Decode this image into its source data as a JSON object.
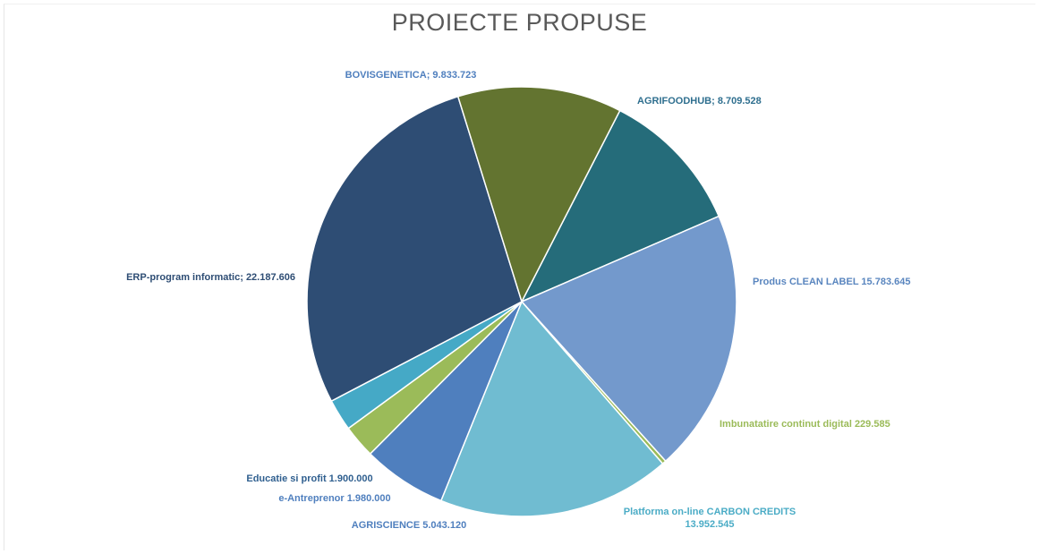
{
  "chart_data": {
    "type": "pie",
    "title": "PROIECTE PROPUSE",
    "slices": [
      {
        "label": "AGRIFOODHUB; 8.709.528",
        "value": 8709528,
        "color": "#256C7A",
        "label_color": "#2F6F8F"
      },
      {
        "label": "Produs CLEAN LABEL 15.783.645",
        "value": 15783645,
        "color": "#7399CC",
        "label_color": "#5A86BF"
      },
      {
        "label": "Imbunatatire continut digital 229.585",
        "value": 229585,
        "color": "#9BBB59",
        "label_color": "#9BBB59"
      },
      {
        "label": "Platforma on-line CARBON CREDITS 13.952.545",
        "value": 13952545,
        "color": "#70BCD1",
        "label_color": "#4BACC6"
      },
      {
        "label": "AGRISCIENCE 5.043.120",
        "value": 5043120,
        "color": "#4F7FBE",
        "label_color": "#4F7FBE"
      },
      {
        "label": "e-Antreprenor 1.980.000",
        "value": 1980000,
        "color": "#9BBB59",
        "label_color": "#4F7FBE"
      },
      {
        "label": "Educatie si profit 1.900.000",
        "value": 1900000,
        "color": "#45A9C6",
        "label_color": "#2F5F8F"
      },
      {
        "label": "ERP-program informatic; 22.187.606",
        "value": 22187606,
        "color": "#2E4D74",
        "label_color": "#2E4D74"
      },
      {
        "label": "BOVISGENETICA; 9.833.723",
        "value": 9833723,
        "color": "#637430",
        "label_color": "#4F7FBE"
      }
    ],
    "legend": "none"
  }
}
